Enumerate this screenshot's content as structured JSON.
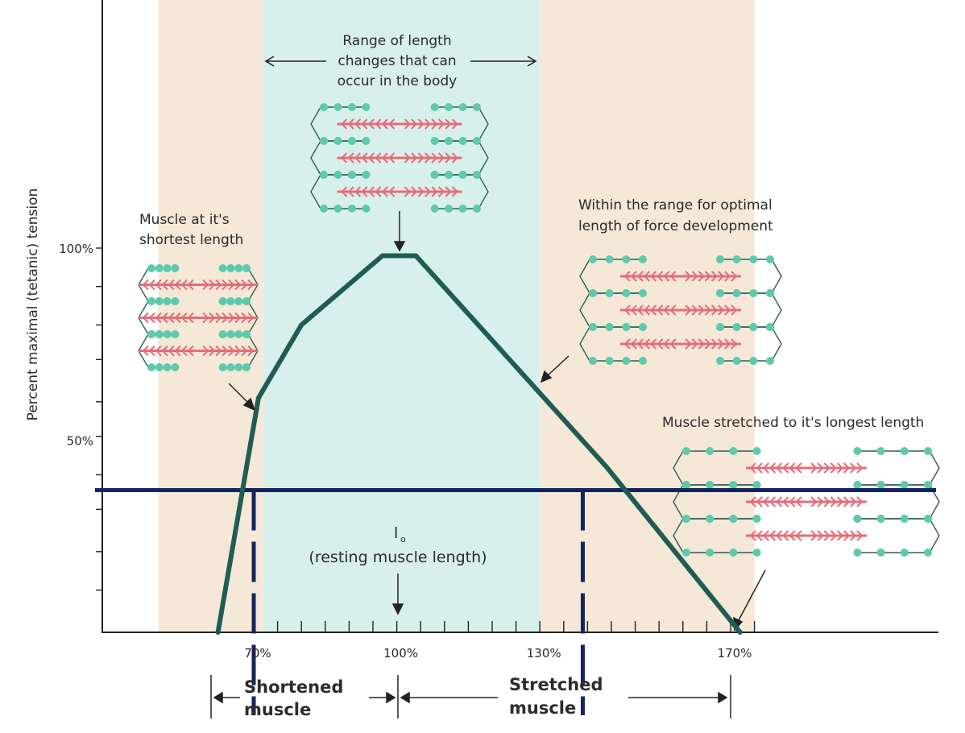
{
  "chart_data": {
    "type": "line",
    "ylabel": "Percent maximal (tetanic) tension",
    "x_tick_labels": [
      {
        "x": 70,
        "label": "70%"
      },
      {
        "x": 100,
        "label": "100%"
      },
      {
        "x": 130,
        "label": "130%"
      },
      {
        "x": 170,
        "label": "170%"
      }
    ],
    "y_tick_labels": [
      {
        "y": 100,
        "label": "100%"
      },
      {
        "y": 50,
        "label": "50%"
      }
    ],
    "xlim": [
      50,
      175
    ],
    "ylim": [
      0,
      100
    ],
    "x_minor_tick_step": 5,
    "y_minor_ticks": [
      11,
      21,
      32,
      41,
      51,
      60,
      71,
      80,
      90,
      100
    ],
    "series": [
      {
        "color": "#1f5c55",
        "points": [
          [
            62.5,
            0
          ],
          [
            71,
            61
          ],
          [
            80,
            80
          ],
          [
            97,
            98
          ],
          [
            104,
            98
          ],
          [
            112,
            87
          ],
          [
            144,
            43
          ],
          [
            172,
            0
          ]
        ]
      }
    ],
    "horizontal_line": {
      "y": 37,
      "color": "#14255e"
    },
    "vertical_dashed_lines": [
      70,
      139
    ],
    "bands": [
      {
        "x": [
          50,
          72
        ],
        "color": "#f5e8d6"
      },
      {
        "x": [
          72,
          130
        ],
        "color": "#d8f0eb"
      },
      {
        "x": [
          130,
          175
        ],
        "color": "#f5e8d6"
      }
    ],
    "annotations": {
      "range": [
        "Range of length",
        "changes that can",
        "occur in the body"
      ],
      "shortest": [
        "Muscle at it's",
        "shortest length"
      ],
      "optimal": [
        "Within the range for optimal",
        "length of force development"
      ],
      "longest": "Muscle stretched to it's longest length",
      "resting_symbol": "l",
      "resting_subscript": "o",
      "resting": "(resting muscle length)"
    },
    "below_axis": {
      "shortened": [
        "Shortened",
        "muscle"
      ],
      "stretched": [
        "Stretched",
        "muscle"
      ]
    }
  }
}
